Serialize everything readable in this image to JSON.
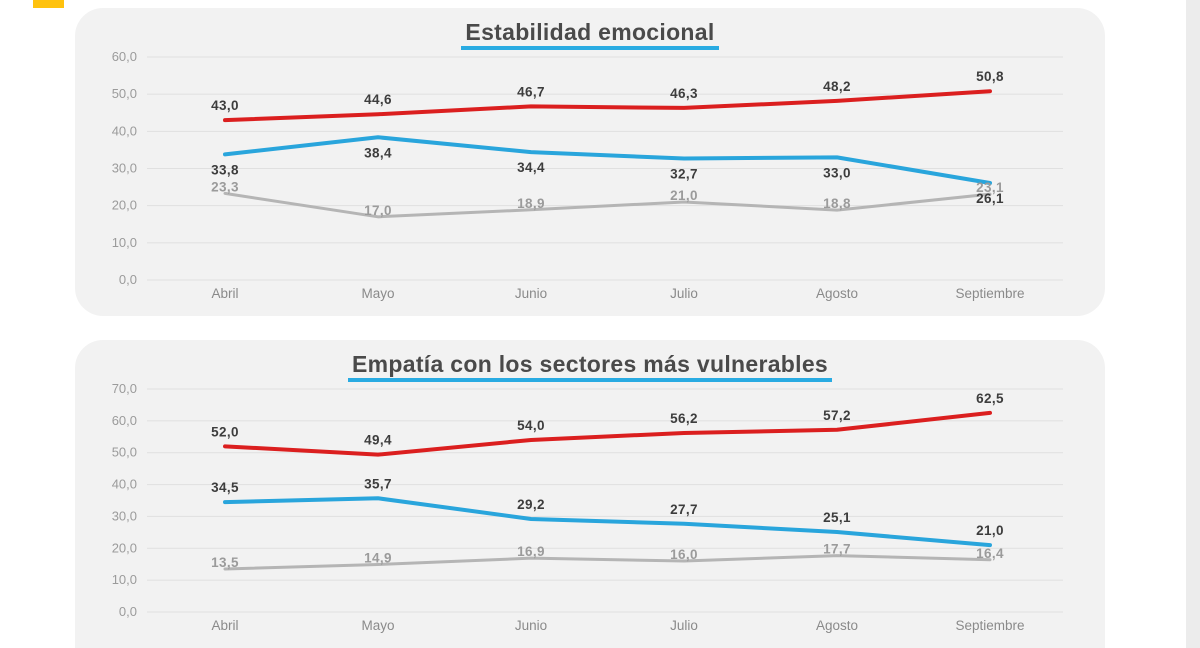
{
  "page": {
    "background": "#ffffff",
    "card_background": "#f2f2f2",
    "accent_underline": "#29abe2",
    "marker_color": "#ffc20e",
    "right_strip_color": "#ececec"
  },
  "chart_data": [
    {
      "type": "line",
      "title": "Estabilidad emocional",
      "categories": [
        "Abril",
        "Mayo",
        "Junio",
        "Julio",
        "Agosto",
        "Septiembre"
      ],
      "series": [
        {
          "name": "red-series",
          "color": "#db1f1f",
          "label_color": "#3d3d3d",
          "label_position": "above",
          "values": [
            43.0,
            44.6,
            46.7,
            46.3,
            48.2,
            50.8
          ],
          "labels": [
            "43,0",
            "44,6",
            "46,7",
            "46,3",
            "48,2",
            "50,8"
          ]
        },
        {
          "name": "blue-series",
          "color": "#29a5dc",
          "label_color": "#3d3d3d",
          "label_position": "below",
          "values": [
            33.8,
            38.4,
            34.4,
            32.7,
            33.0,
            26.1
          ],
          "labels": [
            "33,8",
            "38,4",
            "34,4",
            "32,7",
            "33,0",
            "26,1"
          ]
        },
        {
          "name": "gray-series",
          "color": "#b5b5b5",
          "label_color": "#9b9b9b",
          "label_position": "online",
          "values": [
            23.3,
            17.0,
            18.9,
            21.0,
            18.8,
            23.1
          ],
          "labels": [
            "23,3",
            "17,0",
            "18,9",
            "21,0",
            "18,8",
            "23,1"
          ]
        }
      ],
      "ylim": [
        0,
        60
      ],
      "ytick_step": 10,
      "yticks": [
        "0,0",
        "10,0",
        "20,0",
        "30,0",
        "40,0",
        "50,0",
        "60,0"
      ],
      "xlabel": "",
      "ylabel": "",
      "grid": true,
      "legend": "none"
    },
    {
      "type": "line",
      "title": "Empatía con los sectores más vulnerables",
      "categories": [
        "Abril",
        "Mayo",
        "Junio",
        "Julio",
        "Agosto",
        "Septiembre"
      ],
      "series": [
        {
          "name": "red-series",
          "color": "#db1f1f",
          "label_color": "#3d3d3d",
          "label_position": "above",
          "values": [
            52.0,
            49.4,
            54.0,
            56.2,
            57.2,
            62.5
          ],
          "labels": [
            "52,0",
            "49,4",
            "54,0",
            "56,2",
            "57,2",
            "62,5"
          ]
        },
        {
          "name": "blue-series",
          "color": "#29a5dc",
          "label_color": "#3d3d3d",
          "label_position": "above",
          "values": [
            34.5,
            35.7,
            29.2,
            27.7,
            25.1,
            21.0
          ],
          "labels": [
            "34,5",
            "35,7",
            "29,2",
            "27,7",
            "25,1",
            "21,0"
          ]
        },
        {
          "name": "gray-series",
          "color": "#b5b5b5",
          "label_color": "#9b9b9b",
          "label_position": "online",
          "values": [
            13.5,
            14.9,
            16.9,
            16.0,
            17.7,
            16.4
          ],
          "labels": [
            "13,5",
            "14,9",
            "16,9",
            "16,0",
            "17,7",
            "16,4"
          ]
        }
      ],
      "ylim": [
        0,
        70
      ],
      "ytick_step": 10,
      "yticks": [
        "0,0",
        "10,0",
        "20,0",
        "30,0",
        "40,0",
        "50,0",
        "60,0",
        "70,0"
      ],
      "xlabel": "",
      "ylabel": "",
      "grid": true,
      "legend": "none"
    }
  ]
}
